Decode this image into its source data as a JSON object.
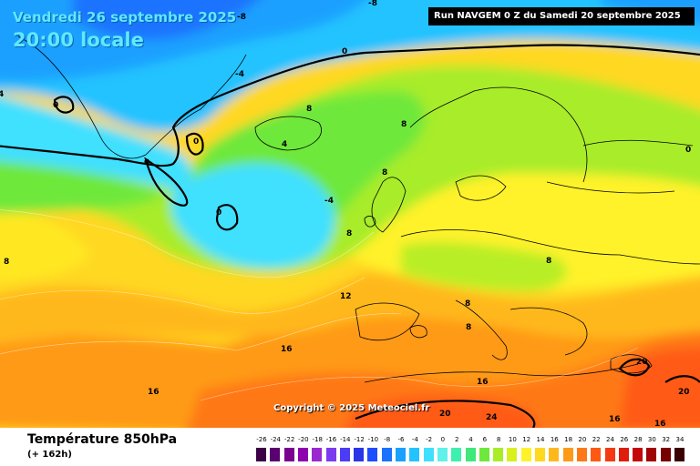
{
  "map": {
    "date": "Vendredi 26 septembre 2025",
    "local_time": "20:00 locale",
    "run_info": "Run NAVGEM 0 Z du Samedi 20 septembre 2025",
    "copyright": "Copyright © 2025 Meteociel.fr",
    "variable_title": "Température 850hPa",
    "lead_time": "(+ 162h)",
    "contour_labels": [
      "-8",
      "-8",
      "0",
      "-4",
      "0",
      "0",
      "0",
      "0",
      "-4",
      "4",
      "8",
      "8",
      "8",
      "8",
      "4",
      "8",
      "12",
      "8",
      "8",
      "8",
      "16",
      "16",
      "16",
      "20",
      "20",
      "24",
      "20",
      "16",
      "16",
      "20",
      "0"
    ]
  },
  "legend": {
    "labels": [
      "-26",
      "-24",
      "-22",
      "-20",
      "-18",
      "-16",
      "-14",
      "-12",
      "-10",
      "-8",
      "-6",
      "-4",
      "-2",
      "0",
      "2",
      "4",
      "6",
      "8",
      "10",
      "12",
      "14",
      "16",
      "18",
      "20",
      "22",
      "24",
      "26",
      "28",
      "30",
      "32",
      "34"
    ],
    "colors": [
      "#3b0046",
      "#5a0070",
      "#7a0090",
      "#8f00b0",
      "#9a2ad0",
      "#7b3cf0",
      "#4d3cf5",
      "#2a35e8",
      "#1e4dff",
      "#1a73ff",
      "#1aa0ff",
      "#22c3ff",
      "#3fe0ff",
      "#5ef2ea",
      "#3df0b0",
      "#3fe87a",
      "#6ee83a",
      "#a8ec2a",
      "#d8f01e",
      "#fff22a",
      "#ffd820",
      "#ffb81c",
      "#ff9a18",
      "#ff7818",
      "#ff5a14",
      "#f43a10",
      "#e01c0c",
      "#c40808",
      "#a00404",
      "#780000",
      "#3a0000"
    ]
  }
}
